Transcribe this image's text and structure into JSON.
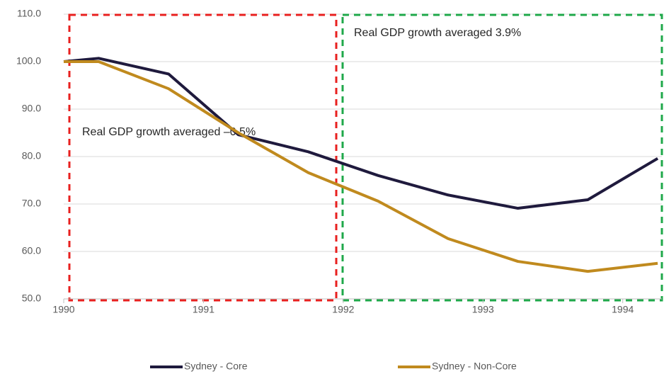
{
  "chart_data": {
    "type": "line",
    "x": [
      1990,
      1990.25,
      1990.75,
      1991.25,
      1991.75,
      1992.25,
      1992.75,
      1993.25,
      1993.75,
      1994.25
    ],
    "series": [
      {
        "name": "Sydney - Core",
        "color": "#1f1a3d",
        "values": [
          100,
          100.7,
          97.4,
          84.6,
          81.0,
          76.0,
          71.9,
          69.1,
          70.9,
          79.6
        ]
      },
      {
        "name": "Sydney - Non-Core",
        "color": "#c08a1e",
        "values": [
          100,
          100,
          94.3,
          85.0,
          76.6,
          70.6,
          62.7,
          57.9,
          55.8,
          57.5
        ]
      }
    ],
    "xlim": [
      1990,
      1994.28
    ],
    "xticks": [
      1990,
      1991,
      1992,
      1993,
      1994
    ],
    "ylim": [
      50,
      110
    ],
    "yticks": [
      {
        "value": 50,
        "label": "50.0"
      },
      {
        "value": 60,
        "label": "60.0"
      },
      {
        "value": 70,
        "label": "70.0"
      },
      {
        "value": 80,
        "label": "80.0"
      },
      {
        "value": 90,
        "label": "90.0"
      },
      {
        "value": 100,
        "label": "100.0"
      },
      {
        "value": 110,
        "label": "110.0"
      }
    ],
    "grid": true,
    "legend": "bottom",
    "annotations": [
      "Real GDP growth averaged –0.5%",
      "Real GDP growth averaged 3.9%"
    ]
  }
}
